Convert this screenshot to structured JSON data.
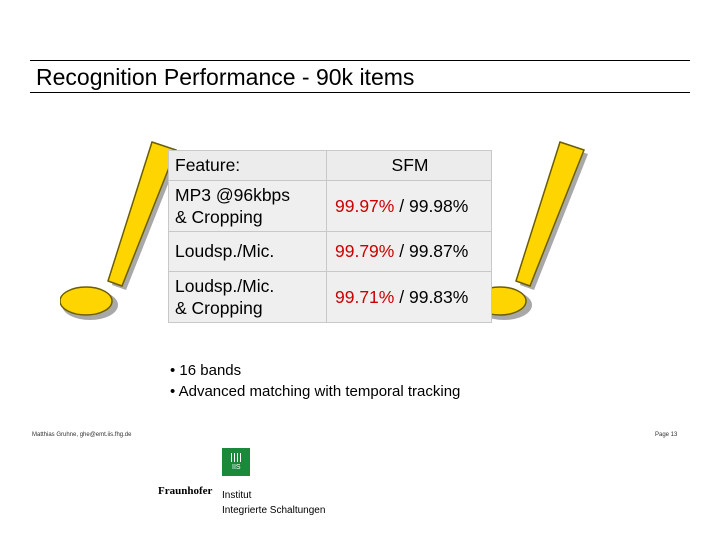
{
  "title": "Recognition Performance - 90k items",
  "table": {
    "header": {
      "feature": "Feature:",
      "method": "SFM"
    },
    "rows": [
      {
        "feature_line1": "MP3 @96kbps",
        "feature_line2": "& Cropping",
        "value_a": "99.97%",
        "separator": "/",
        "value_b": "99.98%"
      },
      {
        "feature_line1": "Loudsp./Mic.",
        "feature_line2": "",
        "value_a": "99.79%",
        "separator": "/",
        "value_b": "99.87%"
      },
      {
        "feature_line1": "Loudsp./Mic.",
        "feature_line2": "& Cropping",
        "value_a": "99.71%",
        "separator": "/",
        "value_b": "99.83%"
      }
    ]
  },
  "bullets": [
    "• 16 bands",
    "• Advanced matching with temporal tracking"
  ],
  "footer": {
    "author": "Matthias Gruhne, ghe@emt.iis.fhg.de",
    "page": "Page 13"
  },
  "logo": {
    "badge": "IIS",
    "brand": "Fraunhofer",
    "line1": "Institut",
    "line2": "Integrierte Schaltungen"
  },
  "colors": {
    "highlight_value": "#cc0000",
    "exclamation": "#ffd500",
    "logo_green": "#1a8a3a"
  },
  "icons": [
    "exclamation-mark-icon",
    "exclamation-mark-icon",
    "fraunhofer-logo-icon"
  ]
}
